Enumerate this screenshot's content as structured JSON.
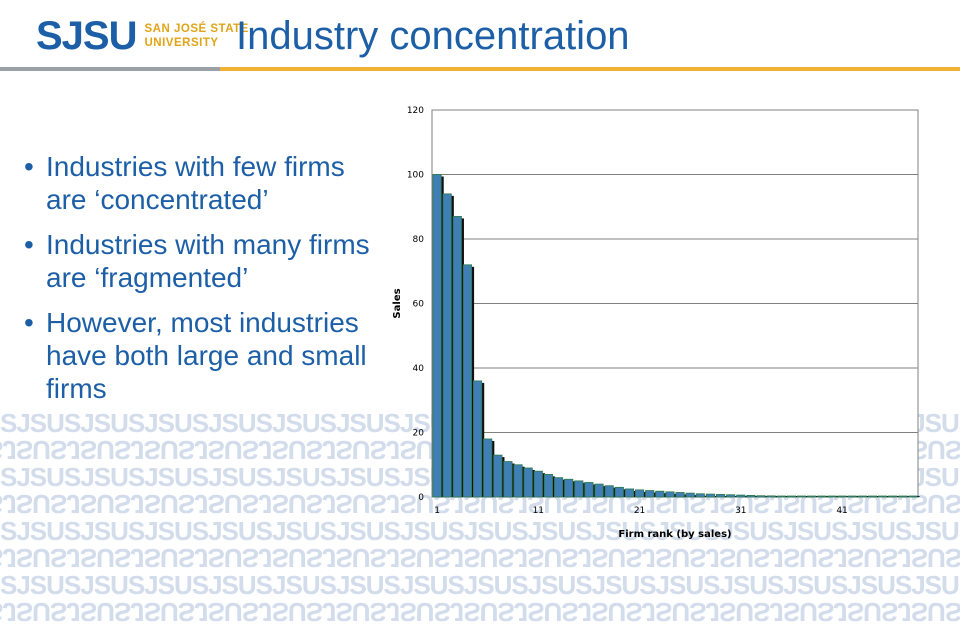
{
  "header": {
    "logo_mark": "SJSU",
    "logo_line1": "SAN JOSÉ STATE",
    "logo_line2": "UNIVERSITY",
    "title": "Industry concentration",
    "colors": {
      "blue": "#1d5fa6",
      "gold": "#f2b134",
      "gray": "#9aa2a8"
    }
  },
  "watermark": {
    "text": "SJSU"
  },
  "bullets": [
    "Industries with few firms are ‘concentrated’",
    "Industries with many firms are ‘fragmented’",
    "However, most industries have both large and small firms"
  ],
  "chart_data": {
    "type": "bar",
    "xlabel": "Firm rank (by sales)",
    "ylabel": "Sales",
    "ylim": [
      0,
      120
    ],
    "yticks": [
      0,
      20,
      40,
      60,
      80,
      100,
      120
    ],
    "xticks": [
      1,
      11,
      21,
      31,
      41
    ],
    "grid": true,
    "bar_color": "#3f7fb5",
    "values": [
      100,
      94,
      87,
      72,
      36,
      18,
      13,
      11,
      10,
      9,
      8,
      7,
      6,
      5.5,
      5,
      4.5,
      4,
      3.5,
      3,
      2.5,
      2.2,
      2,
      1.8,
      1.6,
      1.4,
      1.2,
      1,
      0.9,
      0.8,
      0.7,
      0.6,
      0.5,
      0.4,
      0.35,
      0.3,
      0.25,
      0.2,
      0.18,
      0.16,
      0.14,
      0.12,
      0.1,
      0.09,
      0.08,
      0.07,
      0.06,
      0.05,
      0.05
    ]
  }
}
